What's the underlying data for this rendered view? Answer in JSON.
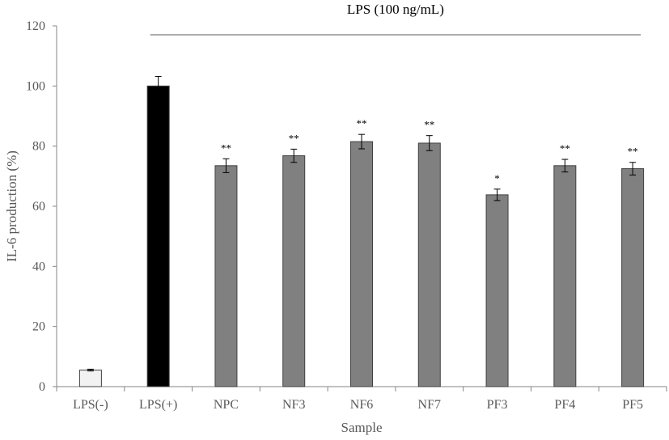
{
  "chart_data": {
    "type": "bar",
    "categories": [
      "LPS(-)",
      "LPS(+)",
      "NPC",
      "NF3",
      "NF6",
      "NF7",
      "PF3",
      "PF4",
      "PF5"
    ],
    "values": [
      5.5,
      100,
      73.5,
      76.8,
      81.5,
      81,
      63.8,
      73.5,
      72.5
    ],
    "error": [
      0.3,
      3.2,
      2.3,
      2.2,
      2.4,
      2.5,
      1.9,
      2.1,
      2.1
    ],
    "significance": [
      "",
      "",
      "**",
      "**",
      "**",
      "**",
      "*",
      "**",
      "**"
    ],
    "bar_colors": [
      "#f2f2f2",
      "#000000",
      "#808080",
      "#808080",
      "#808080",
      "#808080",
      "#808080",
      "#808080",
      "#808080"
    ],
    "bar_stroke": "#404040",
    "xlabel": "Sample",
    "ylabel": "IL-6 production (%)",
    "ylim": [
      0,
      120
    ],
    "yticks": [
      "0",
      "20",
      "40",
      "60",
      "80",
      "100",
      "120"
    ],
    "bracket_label": "LPS (100 ng/mL)",
    "bracket_from": "LPS(+)",
    "bracket_to": "PF5",
    "grid": false,
    "legend": "none"
  }
}
